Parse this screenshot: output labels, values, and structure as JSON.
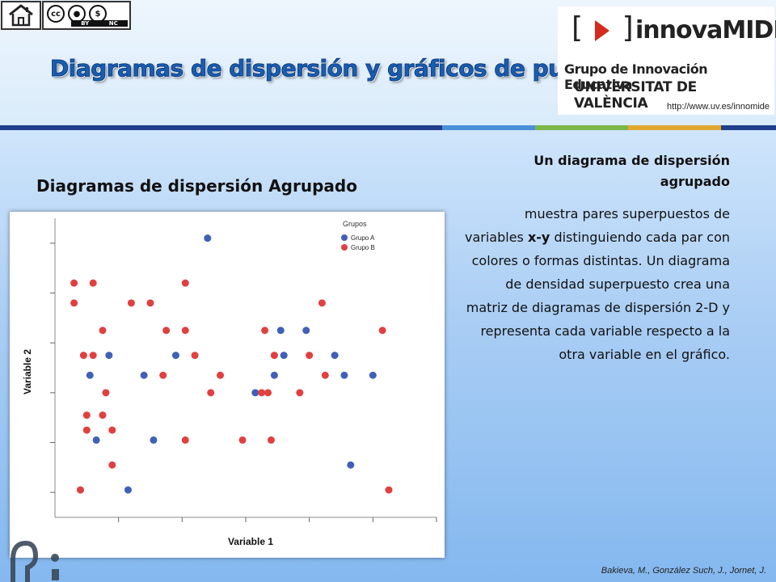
{
  "header": {
    "title": "Diagramas de dispersión y gráficos de puntos",
    "home_icon": "home-icon",
    "license": {
      "icon": "creative-commons-icon",
      "badges": [
        "BY",
        "NC"
      ]
    }
  },
  "logo": {
    "brand": "innovaMIDE",
    "line1": "Grupo de Innovación Educativa",
    "line2": "UNIVERSITAT DE VALÈNCIA",
    "url": "http://www.uv.es/innomide"
  },
  "stripe_colors": [
    "#1f3f8c",
    "#4a90d9",
    "#7ab648",
    "#e0a82e",
    "#1f3f8c"
  ],
  "subheading": "Diagramas de dispersión Agrupado",
  "description": {
    "heading": "Un diagrama de dispersión agrupado",
    "body_parts": [
      "muestra pares superpuestos de variables ",
      "x-y",
      " distinguiendo cada par con colores o formas distintas. Un diagrama de densidad superpuesto crea una matriz de diagramas de dispersión 2-D y representa cada variable respecto a la otra variable en el gráfico."
    ]
  },
  "credit": "Bakieva, M., González Such, J., Jornet, J.",
  "chart_data": {
    "type": "scatter",
    "xlabel": "Variable 1",
    "ylabel": "Variable 2",
    "xlim": [
      0,
      12
    ],
    "ylim": [
      0,
      12
    ],
    "tick_labels_shown": false,
    "grid": false,
    "legend": {
      "title": "Grupos",
      "placement": "top-right"
    },
    "series": [
      {
        "name": "Grupo A",
        "color": "#4060b8",
        "points": [
          [
            4.8,
            11.2
          ],
          [
            7.1,
            7.5
          ],
          [
            7.9,
            7.5
          ],
          [
            1.7,
            6.5
          ],
          [
            3.8,
            6.5
          ],
          [
            7.2,
            6.5
          ],
          [
            8.8,
            6.5
          ],
          [
            1.1,
            5.7
          ],
          [
            2.8,
            5.7
          ],
          [
            6.9,
            5.7
          ],
          [
            9.1,
            5.7
          ],
          [
            10.0,
            5.7
          ],
          [
            6.3,
            5.0
          ],
          [
            1.3,
            3.1
          ],
          [
            3.1,
            3.1
          ],
          [
            9.3,
            2.1
          ],
          [
            2.3,
            1.1
          ]
        ]
      },
      {
        "name": "Grupo B",
        "color": "#e04040",
        "points": [
          [
            0.6,
            9.4
          ],
          [
            1.2,
            9.4
          ],
          [
            4.1,
            9.4
          ],
          [
            0.6,
            8.6
          ],
          [
            2.4,
            8.6
          ],
          [
            3.0,
            8.6
          ],
          [
            8.4,
            8.6
          ],
          [
            1.5,
            7.5
          ],
          [
            3.5,
            7.5
          ],
          [
            4.1,
            7.5
          ],
          [
            6.6,
            7.5
          ],
          [
            10.3,
            7.5
          ],
          [
            0.9,
            6.5
          ],
          [
            1.2,
            6.5
          ],
          [
            4.4,
            6.5
          ],
          [
            6.9,
            6.5
          ],
          [
            8.0,
            6.5
          ],
          [
            3.4,
            5.7
          ],
          [
            5.2,
            5.7
          ],
          [
            8.5,
            5.7
          ],
          [
            1.6,
            5.0
          ],
          [
            4.9,
            5.0
          ],
          [
            6.5,
            5.0
          ],
          [
            6.7,
            5.0
          ],
          [
            7.7,
            5.0
          ],
          [
            1.0,
            4.1
          ],
          [
            1.5,
            4.1
          ],
          [
            1.0,
            3.5
          ],
          [
            1.8,
            3.5
          ],
          [
            4.1,
            3.1
          ],
          [
            5.9,
            3.1
          ],
          [
            6.8,
            3.1
          ],
          [
            1.8,
            2.1
          ],
          [
            0.8,
            1.1
          ],
          [
            10.5,
            1.1
          ]
        ]
      }
    ]
  }
}
